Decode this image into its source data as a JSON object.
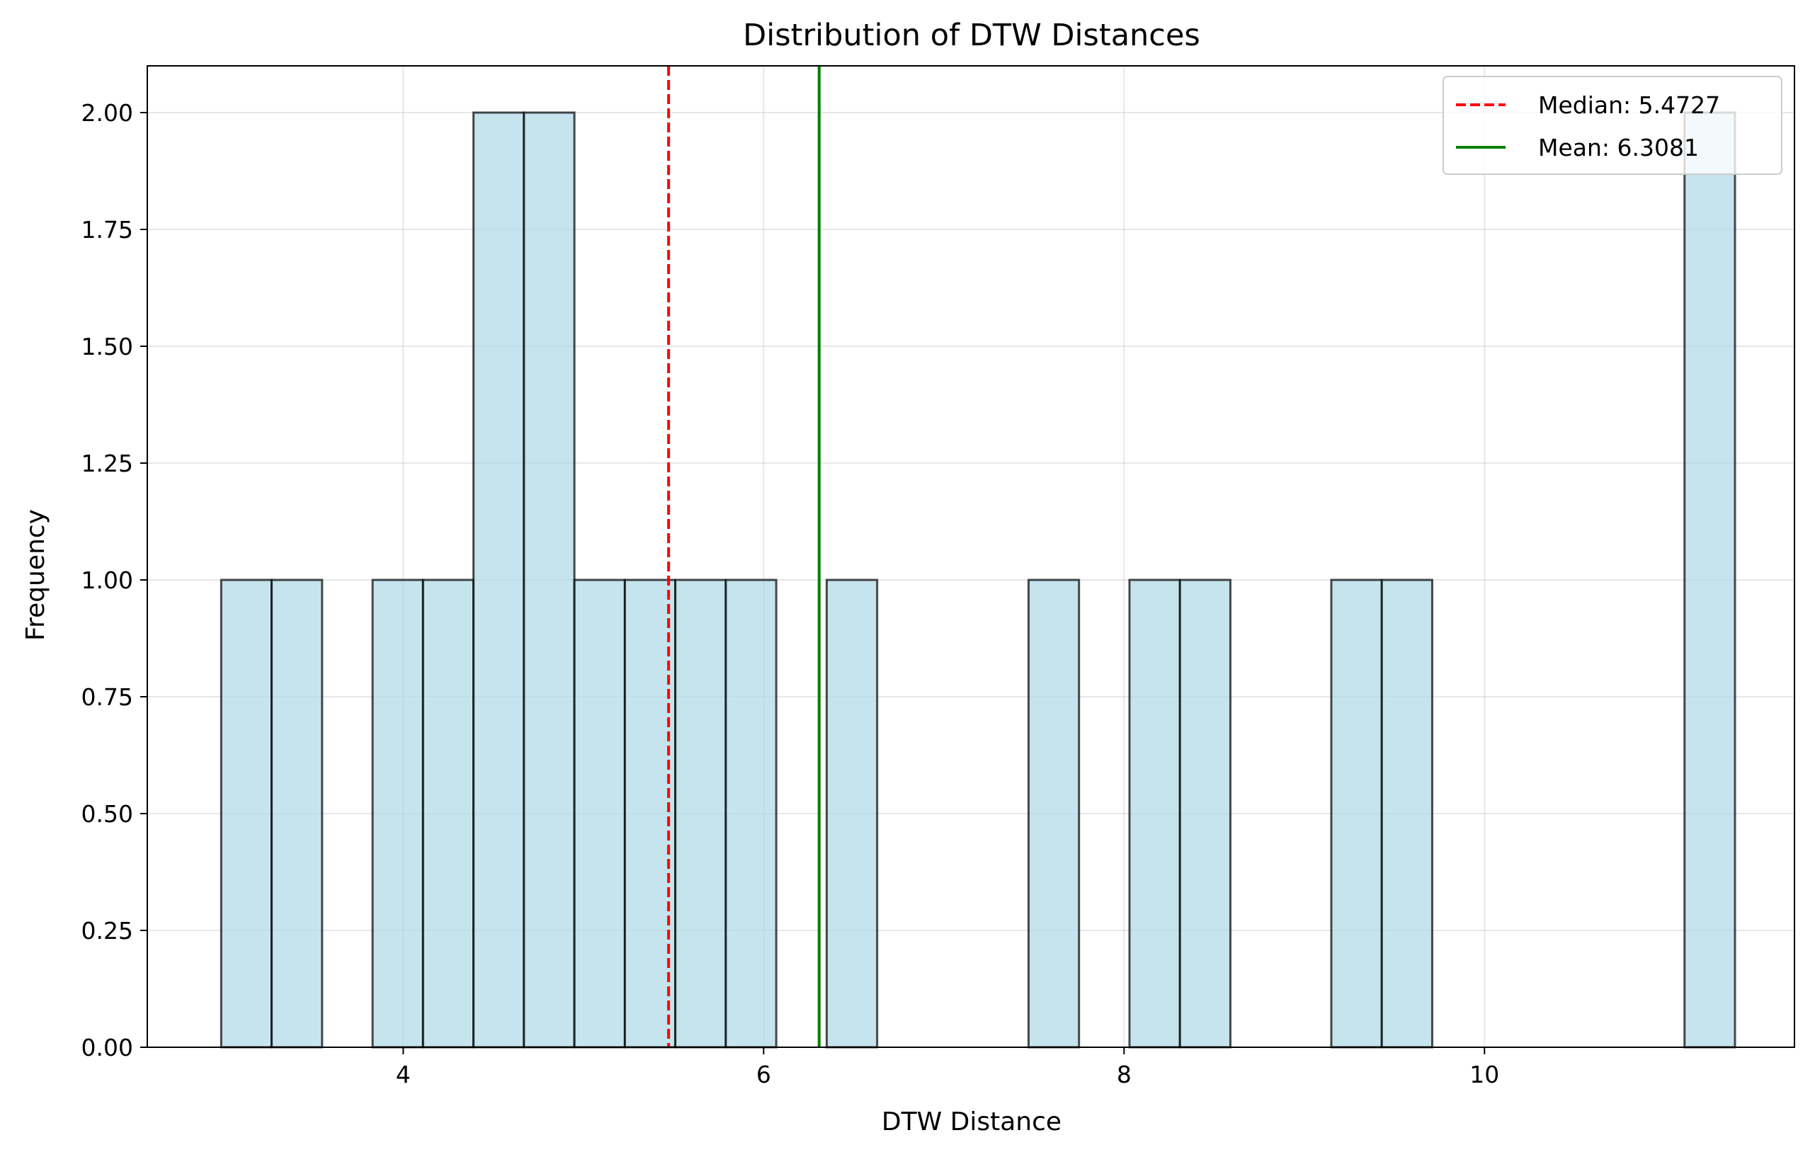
{
  "chart_data": {
    "type": "bar",
    "title": "Distribution of DTW Distances",
    "xlabel": "DTW Distance",
    "ylabel": "Frequency",
    "xlim": [
      2.58,
      11.72
    ],
    "ylim": [
      0,
      2.1
    ],
    "xticks": [
      4,
      6,
      8,
      10
    ],
    "xtick_labels": [
      "4",
      "6",
      "8",
      "10"
    ],
    "yticks": [
      0,
      0.25,
      0.5,
      0.75,
      1.0,
      1.25,
      1.5,
      1.75,
      2.0
    ],
    "ytick_labels": [
      "0.00",
      "0.25",
      "0.50",
      "0.75",
      "1.00",
      "1.25",
      "1.50",
      "1.75",
      "2.00"
    ],
    "grid": true,
    "bins": [
      {
        "x0": 2.99,
        "x1": 3.27,
        "value": 1
      },
      {
        "x0": 3.27,
        "x1": 3.55,
        "value": 1
      },
      {
        "x0": 3.83,
        "x1": 4.11,
        "value": 1
      },
      {
        "x0": 4.11,
        "x1": 4.39,
        "value": 1
      },
      {
        "x0": 4.39,
        "x1": 4.67,
        "value": 2
      },
      {
        "x0": 4.67,
        "x1": 4.95,
        "value": 2
      },
      {
        "x0": 4.95,
        "x1": 5.23,
        "value": 1
      },
      {
        "x0": 5.23,
        "x1": 5.51,
        "value": 1
      },
      {
        "x0": 5.51,
        "x1": 5.79,
        "value": 1
      },
      {
        "x0": 5.79,
        "x1": 6.07,
        "value": 1
      },
      {
        "x0": 6.35,
        "x1": 6.63,
        "value": 1
      },
      {
        "x0": 7.47,
        "x1": 7.75,
        "value": 1
      },
      {
        "x0": 8.03,
        "x1": 8.31,
        "value": 1
      },
      {
        "x0": 8.31,
        "x1": 8.59,
        "value": 1
      },
      {
        "x0": 9.15,
        "x1": 9.43,
        "value": 1
      },
      {
        "x0": 9.43,
        "x1": 9.71,
        "value": 1
      },
      {
        "x0": 11.11,
        "x1": 11.39,
        "value": 2
      }
    ],
    "bar_color": "#add8e6",
    "bar_edge_color": "#000000",
    "reference_lines": [
      {
        "label": "Median: 5.4727",
        "x": 5.4727,
        "color": "#ff0000",
        "style": "dashed"
      },
      {
        "label": "Mean: 6.3081",
        "x": 6.3081,
        "color": "#008000",
        "style": "solid"
      }
    ],
    "legend_position": "top-right"
  }
}
